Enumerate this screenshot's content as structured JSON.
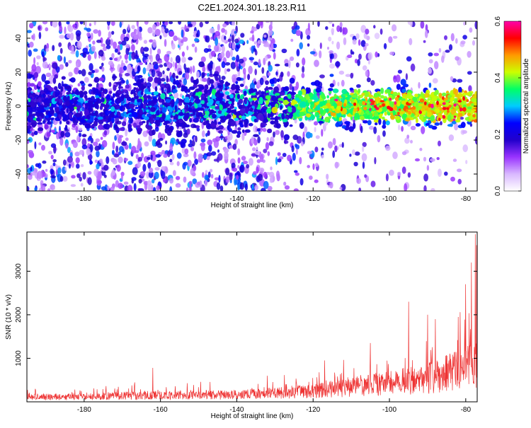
{
  "title": "C2E1.2024.301.18.23.R11",
  "chart_data": [
    {
      "type": "heatmap",
      "xlabel": "Height of straight line (km)",
      "ylabel": "Frequency (Hz)",
      "xlim": [
        -195,
        -77
      ],
      "ylim": [
        -50,
        50
      ],
      "x_ticks": [
        -180,
        -160,
        -140,
        -120,
        -100,
        -80
      ],
      "y_ticks": [
        -40,
        -20,
        0,
        20,
        40
      ],
      "grid": false,
      "colorbar": {
        "label": "Normalized spectral amplitude",
        "range": [
          0.0,
          0.6
        ],
        "ticks": [
          "0.0",
          "0.2",
          "0.4",
          "0.6"
        ],
        "colormap": [
          "#ffffff",
          "#d9b8ff",
          "#9933ff",
          "#2200cc",
          "#0000ff",
          "#00ccff",
          "#00ff66",
          "#ccff00",
          "#ff9900",
          "#ff0000",
          "#ff00aa"
        ]
      },
      "strong_band": {
        "center_hz": 0,
        "halfwidth_hz": 6
      }
    },
    {
      "type": "line",
      "xlabel": "Height of straight line (km)",
      "ylabel": "SNR (10 * v/v)",
      "xlim": [
        -195,
        -77
      ],
      "ylim": [
        0,
        3900
      ],
      "x_ticks": [
        -180,
        -160,
        -140,
        -120,
        -100,
        -80
      ],
      "y_ticks": [
        1000,
        2000,
        3000
      ],
      "grid": false,
      "color": "#ee3333",
      "envelope": [
        {
          "x": -195,
          "y": 150
        },
        {
          "x": -180,
          "y": 160
        },
        {
          "x": -165,
          "y": 200
        },
        {
          "x": -150,
          "y": 200
        },
        {
          "x": -140,
          "y": 220
        },
        {
          "x": -130,
          "y": 270
        },
        {
          "x": -120,
          "y": 330
        },
        {
          "x": -110,
          "y": 450
        },
        {
          "x": -100,
          "y": 580
        },
        {
          "x": -90,
          "y": 720
        },
        {
          "x": -85,
          "y": 880
        },
        {
          "x": -80,
          "y": 1050
        },
        {
          "x": -77,
          "y": 1100
        }
      ],
      "peaks": [
        {
          "x": -162,
          "y": 780
        },
        {
          "x": -132,
          "y": 600
        },
        {
          "x": -117,
          "y": 950
        },
        {
          "x": -105,
          "y": 1350
        },
        {
          "x": -95,
          "y": 2300
        },
        {
          "x": -90,
          "y": 2000
        },
        {
          "x": -88,
          "y": 1900
        },
        {
          "x": -82,
          "y": 1950
        },
        {
          "x": -80,
          "y": 2700
        },
        {
          "x": -78.5,
          "y": 3200
        },
        {
          "x": -77.5,
          "y": 3850
        },
        {
          "x": -77.2,
          "y": 3600
        }
      ]
    }
  ]
}
